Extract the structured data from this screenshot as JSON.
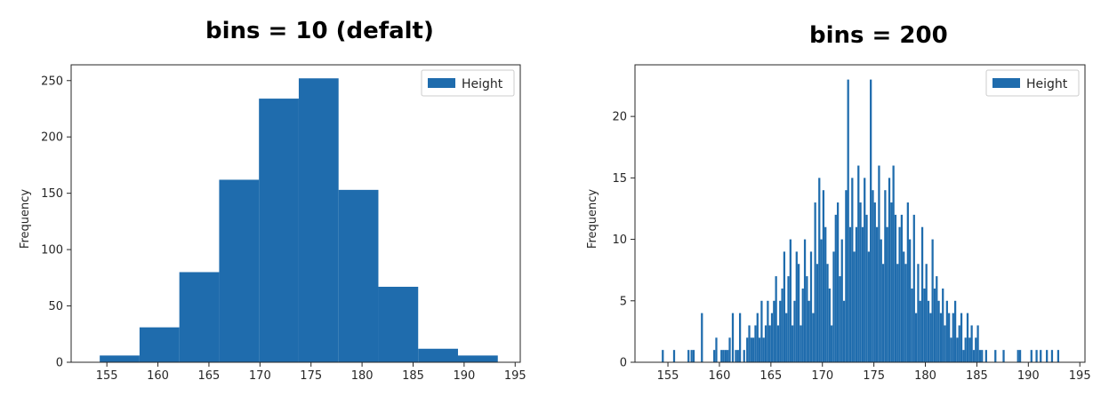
{
  "chart_data": [
    {
      "type": "bar",
      "title": "bins = 10 (defalt)",
      "xlabel": "",
      "ylabel": "Frequency",
      "legend": [
        "Height"
      ],
      "legend_position": "top-right",
      "grid": false,
      "bar_color": "#1f6cad",
      "bin_edges": [
        154.3,
        158.2,
        162.1,
        166.0,
        169.9,
        173.8,
        177.7,
        181.6,
        185.5,
        189.4,
        193.3
      ],
      "values": [
        6,
        31,
        80,
        162,
        234,
        252,
        153,
        67,
        12,
        6
      ],
      "xlim": [
        151.5,
        195.5
      ],
      "ylim": [
        0,
        264
      ],
      "xticks": [
        155,
        160,
        165,
        170,
        175,
        180,
        185,
        190,
        195
      ],
      "yticks": [
        0,
        50,
        100,
        150,
        200,
        250
      ]
    },
    {
      "type": "bar",
      "title": "bins = 200",
      "xlabel": "",
      "ylabel": "Frequency",
      "legend": [
        "Height"
      ],
      "legend_position": "top-right",
      "grid": false,
      "bar_color": "#1f6cad",
      "bin_range": [
        154.3,
        193.3
      ],
      "bin_count": 200,
      "bars": [
        [
          154.5,
          1
        ],
        [
          155.6,
          1
        ],
        [
          157.0,
          1
        ],
        [
          157.3,
          1
        ],
        [
          157.5,
          1
        ],
        [
          158.3,
          4
        ],
        [
          159.5,
          1
        ],
        [
          159.7,
          2
        ],
        [
          160.2,
          1
        ],
        [
          160.4,
          1
        ],
        [
          160.6,
          1
        ],
        [
          160.8,
          1
        ],
        [
          161.0,
          2
        ],
        [
          161.3,
          4
        ],
        [
          161.6,
          1
        ],
        [
          161.8,
          1
        ],
        [
          162.0,
          4
        ],
        [
          162.4,
          1
        ],
        [
          162.7,
          2
        ],
        [
          162.9,
          3
        ],
        [
          163.1,
          2
        ],
        [
          163.3,
          2
        ],
        [
          163.5,
          3
        ],
        [
          163.7,
          4
        ],
        [
          163.9,
          2
        ],
        [
          164.1,
          5
        ],
        [
          164.3,
          2
        ],
        [
          164.5,
          3
        ],
        [
          164.7,
          5
        ],
        [
          164.9,
          3
        ],
        [
          165.1,
          4
        ],
        [
          165.3,
          5
        ],
        [
          165.5,
          7
        ],
        [
          165.7,
          3
        ],
        [
          165.9,
          5
        ],
        [
          166.1,
          6
        ],
        [
          166.3,
          9
        ],
        [
          166.5,
          4
        ],
        [
          166.7,
          7
        ],
        [
          166.9,
          10
        ],
        [
          167.1,
          3
        ],
        [
          167.3,
          5
        ],
        [
          167.5,
          9
        ],
        [
          167.7,
          8
        ],
        [
          167.9,
          3
        ],
        [
          168.1,
          6
        ],
        [
          168.3,
          10
        ],
        [
          168.5,
          7
        ],
        [
          168.7,
          5
        ],
        [
          168.9,
          9
        ],
        [
          169.1,
          4
        ],
        [
          169.3,
          13
        ],
        [
          169.5,
          8
        ],
        [
          169.7,
          15
        ],
        [
          169.9,
          10
        ],
        [
          170.1,
          14
        ],
        [
          170.3,
          11
        ],
        [
          170.5,
          8
        ],
        [
          170.7,
          6
        ],
        [
          170.9,
          3
        ],
        [
          171.1,
          9
        ],
        [
          171.3,
          12
        ],
        [
          171.5,
          13
        ],
        [
          171.7,
          7
        ],
        [
          171.9,
          10
        ],
        [
          172.1,
          5
        ],
        [
          172.3,
          14
        ],
        [
          172.5,
          23
        ],
        [
          172.7,
          11
        ],
        [
          172.9,
          15
        ],
        [
          173.1,
          9
        ],
        [
          173.3,
          11
        ],
        [
          173.5,
          16
        ],
        [
          173.7,
          13
        ],
        [
          173.9,
          11
        ],
        [
          174.1,
          15
        ],
        [
          174.3,
          12
        ],
        [
          174.5,
          9
        ],
        [
          174.7,
          23
        ],
        [
          174.9,
          14
        ],
        [
          175.1,
          13
        ],
        [
          175.3,
          11
        ],
        [
          175.5,
          16
        ],
        [
          175.7,
          10
        ],
        [
          175.9,
          8
        ],
        [
          176.1,
          14
        ],
        [
          176.3,
          11
        ],
        [
          176.5,
          15
        ],
        [
          176.7,
          13
        ],
        [
          176.9,
          16
        ],
        [
          177.1,
          12
        ],
        [
          177.3,
          8
        ],
        [
          177.5,
          11
        ],
        [
          177.7,
          12
        ],
        [
          177.9,
          9
        ],
        [
          178.1,
          8
        ],
        [
          178.3,
          13
        ],
        [
          178.5,
          10
        ],
        [
          178.7,
          6
        ],
        [
          178.9,
          12
        ],
        [
          179.1,
          4
        ],
        [
          179.3,
          8
        ],
        [
          179.5,
          5
        ],
        [
          179.7,
          11
        ],
        [
          179.9,
          6
        ],
        [
          180.1,
          8
        ],
        [
          180.3,
          5
        ],
        [
          180.5,
          4
        ],
        [
          180.7,
          10
        ],
        [
          180.9,
          6
        ],
        [
          181.1,
          7
        ],
        [
          181.3,
          5
        ],
        [
          181.5,
          4
        ],
        [
          181.7,
          6
        ],
        [
          181.9,
          3
        ],
        [
          182.1,
          5
        ],
        [
          182.3,
          4
        ],
        [
          182.5,
          2
        ],
        [
          182.7,
          4
        ],
        [
          182.9,
          5
        ],
        [
          183.1,
          2
        ],
        [
          183.3,
          3
        ],
        [
          183.5,
          4
        ],
        [
          183.7,
          1
        ],
        [
          183.9,
          2
        ],
        [
          184.1,
          4
        ],
        [
          184.3,
          2
        ],
        [
          184.5,
          3
        ],
        [
          184.7,
          1
        ],
        [
          184.9,
          2
        ],
        [
          185.1,
          3
        ],
        [
          185.3,
          1
        ],
        [
          185.5,
          1
        ],
        [
          185.9,
          1
        ],
        [
          186.8,
          1
        ],
        [
          187.6,
          1
        ],
        [
          189.0,
          1
        ],
        [
          189.2,
          1
        ],
        [
          190.3,
          1
        ],
        [
          190.8,
          1
        ],
        [
          191.2,
          1
        ],
        [
          191.8,
          1
        ],
        [
          192.3,
          1
        ],
        [
          192.9,
          1
        ]
      ],
      "xlim": [
        151.8,
        195.5
      ],
      "ylim": [
        0,
        24.2
      ],
      "xticks": [
        155,
        160,
        165,
        170,
        175,
        180,
        185,
        190,
        195
      ],
      "yticks": [
        0,
        5,
        10,
        15,
        20
      ]
    }
  ]
}
